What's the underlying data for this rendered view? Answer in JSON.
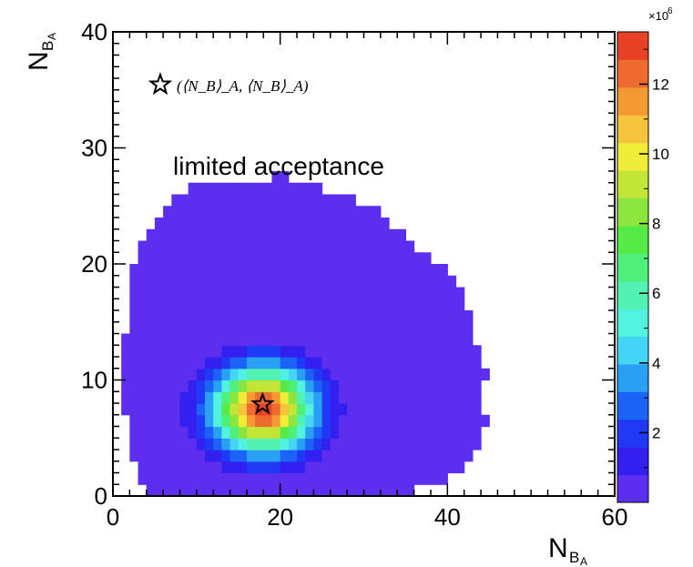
{
  "chart_data": {
    "type": "heatmap",
    "x_var": "N",
    "x_sub": "B",
    "x_subsub": "A",
    "y_var": "N",
    "y_sub": "B",
    "y_subsub": "A",
    "xlim": [
      0,
      60
    ],
    "ylim": [
      0,
      40
    ],
    "x_ticks": [
      0,
      20,
      40,
      60
    ],
    "y_ticks": [
      0,
      10,
      20,
      30,
      40
    ],
    "bin_width": 2,
    "bin_height": 1,
    "annotation": "limited acceptance",
    "legend_label": "(⟨N_B⟩_A, ⟨N_B⟩_A)",
    "legend_marker": "star",
    "legend_placement": "top-left",
    "marker_point": [
      17.9,
      7.9
    ],
    "colorbar": {
      "multiplier": "×10",
      "multiplier_exp": "6",
      "range": [
        0,
        13.5
      ],
      "ticks": [
        2,
        4,
        6,
        8,
        10,
        12
      ],
      "colors": [
        "#5c2ff0",
        "#3320f0",
        "#1f3af5",
        "#1b63f6",
        "#2aa0f5",
        "#44d4f5",
        "#52f2e0",
        "#52f2b4",
        "#4ff07a",
        "#55ea44",
        "#8ae53c",
        "#c2e536",
        "#f0ec38",
        "#f5c43a",
        "#f49a33",
        "#ee6b2e",
        "#e84226"
      ]
    },
    "peak_value_millions": 13.5,
    "core_center": [
      17.9,
      7.5
    ],
    "core_radius_x": 10.5,
    "core_radius_y": 6.5,
    "outline_x_min": [
      [
        0,
        4
      ],
      [
        1,
        3
      ],
      [
        2,
        3
      ],
      [
        3,
        2
      ],
      [
        4,
        2
      ],
      [
        5,
        2
      ],
      [
        6,
        2
      ],
      [
        7,
        1
      ],
      [
        8,
        1
      ],
      [
        9,
        1
      ],
      [
        10,
        1
      ],
      [
        11,
        1
      ],
      [
        12,
        1
      ],
      [
        13,
        1
      ],
      [
        14,
        2
      ],
      [
        15,
        2
      ],
      [
        16,
        2
      ],
      [
        17,
        2
      ],
      [
        18,
        2
      ],
      [
        19,
        2
      ],
      [
        20,
        3
      ],
      [
        21,
        3
      ],
      [
        22,
        4
      ],
      [
        23,
        5
      ],
      [
        24,
        6
      ],
      [
        25,
        7
      ],
      [
        26,
        9
      ],
      [
        27,
        19
      ]
    ],
    "outline_x_max": [
      [
        0,
        36
      ],
      [
        1,
        40
      ],
      [
        2,
        42
      ],
      [
        3,
        43
      ],
      [
        4,
        44
      ],
      [
        5,
        44
      ],
      [
        6,
        45
      ],
      [
        7,
        44
      ],
      [
        8,
        44
      ],
      [
        9,
        44
      ],
      [
        10,
        45
      ],
      [
        11,
        44
      ],
      [
        12,
        44
      ],
      [
        13,
        43
      ],
      [
        14,
        43
      ],
      [
        15,
        43
      ],
      [
        16,
        42
      ],
      [
        17,
        42
      ],
      [
        18,
        41
      ],
      [
        19,
        40
      ],
      [
        20,
        38
      ],
      [
        21,
        36
      ],
      [
        22,
        35
      ],
      [
        23,
        33
      ],
      [
        24,
        32
      ],
      [
        25,
        29
      ],
      [
        26,
        25
      ],
      [
        27,
        21
      ]
    ]
  }
}
